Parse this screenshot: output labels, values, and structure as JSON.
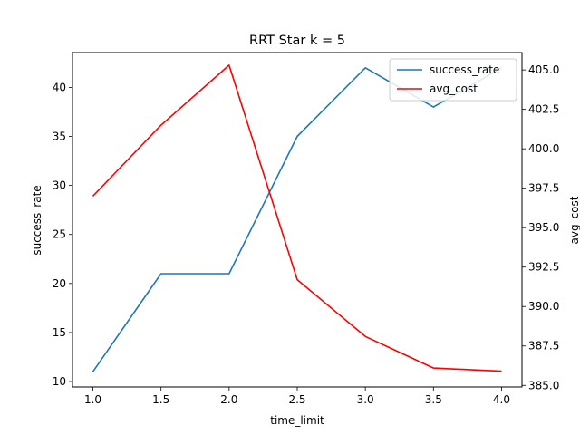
{
  "chart_data": {
    "type": "line",
    "title": "RRT Star k = 5",
    "xlabel": "time_limit",
    "ylabel_left": "success_rate",
    "ylabel_right": "avg_cost",
    "x": [
      1.0,
      1.5,
      2.0,
      2.5,
      3.0,
      3.5,
      4.0
    ],
    "x_ticks": [
      "1.0",
      "1.5",
      "2.0",
      "2.5",
      "3.0",
      "3.5",
      "4.0"
    ],
    "xlim": [
      0.85,
      4.15
    ],
    "ylim_left": [
      9.45,
      43.55
    ],
    "ylim_right": [
      384.9,
      406.1
    ],
    "y_ticks_left": [
      "10",
      "15",
      "20",
      "25",
      "30",
      "35",
      "40"
    ],
    "y_ticks_right": [
      "385.0",
      "387.5",
      "390.0",
      "392.5",
      "395.0",
      "397.5",
      "400.0",
      "402.5",
      "405.0"
    ],
    "series": [
      {
        "name": "success_rate",
        "axis": "left",
        "color": "#1f77b4",
        "values": [
          11,
          21,
          21,
          35,
          42,
          38,
          42
        ]
      },
      {
        "name": "avg_cost",
        "axis": "right",
        "color": "#ff0000",
        "values": [
          397.0,
          401.5,
          405.3,
          391.7,
          388.1,
          386.1,
          385.9
        ]
      }
    ],
    "legend_position": "upper-right",
    "grid": false
  }
}
